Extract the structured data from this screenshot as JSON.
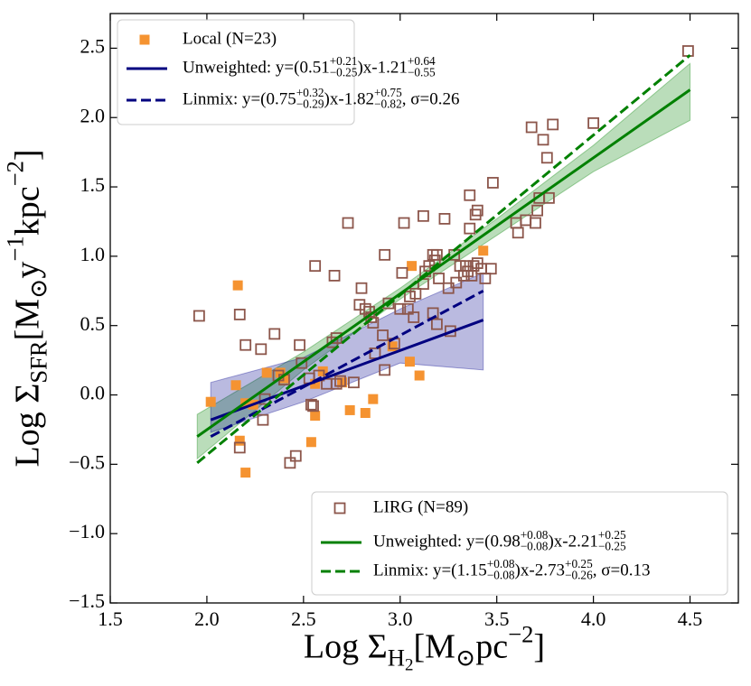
{
  "chart_data": {
    "type": "scatter",
    "xlabel": [
      {
        "text": "Log Σ"
      },
      {
        "text": "H",
        "pos": "sub"
      },
      {
        "text": "2",
        "pos": "subsub"
      },
      {
        "text": " [M"
      },
      {
        "text": "⊙",
        "pos": "sub"
      },
      {
        "text": " pc"
      },
      {
        "text": "−2",
        "pos": "sup"
      },
      {
        "text": "]"
      }
    ],
    "ylabel": [
      {
        "text": "Log Σ"
      },
      {
        "text": "SFR",
        "pos": "sub"
      },
      {
        "text": " [M"
      },
      {
        "text": "⊙",
        "pos": "sub"
      },
      {
        "text": " y"
      },
      {
        "text": "−1",
        "pos": "sup"
      },
      {
        "text": " kpc"
      },
      {
        "text": "−2",
        "pos": "sup"
      },
      {
        "text": "]"
      }
    ],
    "xlim": [
      1.5,
      4.75
    ],
    "ylim": [
      -1.5,
      2.75
    ],
    "xticks": [
      1.5,
      {
        "value": 2,
        "label": "2.0"
      },
      2.5,
      {
        "value": 3,
        "label": "3.0"
      },
      3.5,
      {
        "value": 4,
        "label": "4.0"
      },
      4.5
    ],
    "yticks": [
      {
        "value": -1.5,
        "label": "−1.5"
      },
      {
        "value": -1,
        "label": "−1.0"
      },
      {
        "value": -0.5,
        "label": "−0.5"
      },
      {
        "value": 0,
        "label": "0.0"
      },
      0.5,
      {
        "value": 1,
        "label": "1.0"
      },
      1.5,
      {
        "value": 2,
        "label": "2.0"
      },
      2.5
    ],
    "grid": false,
    "bands": [
      {
        "color": "#008000",
        "x": [
          1.95,
          2.5,
          3.0,
          3.5,
          4.0,
          4.5
        ],
        "upper": [
          -0.14,
          0.31,
          0.77,
          1.27,
          1.8,
          2.39
        ],
        "lower": [
          -0.46,
          0.18,
          0.69,
          1.15,
          1.61,
          1.98
        ]
      },
      {
        "color": "#00008b",
        "x": [
          2.02,
          2.5,
          3.0,
          3.43
        ],
        "upper": [
          0.09,
          0.27,
          0.62,
          0.88
        ],
        "lower": [
          -0.27,
          -0.05,
          0.23,
          0.18
        ]
      }
    ],
    "series": [
      {
        "name": "Local (N=23)",
        "marker": "filled",
        "color": "#f59331",
        "legend": "upper left",
        "x": [
          2.02,
          2.15,
          2.16,
          2.17,
          2.2,
          2.2,
          2.24,
          2.31,
          2.38,
          2.54,
          2.56,
          2.56,
          2.6,
          2.7,
          2.74,
          2.82,
          2.86,
          2.96,
          3.05,
          3.06,
          3.1,
          3.43,
          2.4
        ],
        "values": [
          -0.05,
          0.07,
          0.79,
          -0.33,
          -0.56,
          -0.06,
          -0.07,
          0.16,
          0.16,
          -0.34,
          -0.15,
          0.08,
          0.17,
          0.09,
          -0.11,
          -0.13,
          -0.03,
          0.35,
          0.24,
          0.93,
          0.14,
          1.04,
          0.12
        ]
      },
      {
        "name": "LIRG (N=89)",
        "marker": "open",
        "color": "#8c564b",
        "legend": "lower right",
        "x": [
          1.96,
          2.17,
          2.17,
          2.2,
          2.28,
          2.29,
          2.3,
          2.35,
          2.37,
          2.4,
          2.43,
          2.46,
          2.48,
          2.49,
          2.53,
          2.54,
          2.56,
          2.55,
          2.62,
          2.65,
          2.66,
          2.67,
          2.67,
          2.73,
          2.76,
          2.79,
          2.8,
          2.82,
          2.85,
          2.86,
          2.87,
          2.91,
          2.92,
          2.92,
          2.94,
          2.97,
          3.01,
          3.02,
          3.04,
          3.05,
          3.07,
          3.08,
          3.12,
          3.12,
          3.13,
          3.15,
          3.17,
          3.17,
          3.18,
          3.19,
          3.19,
          3.2,
          3.23,
          3.25,
          3.26,
          3.28,
          3.29,
          3.33,
          3.34,
          3.36,
          3.36,
          3.37,
          3.38,
          3.39,
          3.4,
          3.4,
          3.42,
          3.44,
          3.47,
          3.48,
          3.6,
          3.61,
          3.65,
          3.68,
          3.7,
          3.71,
          3.72,
          3.74,
          3.76,
          3.77,
          3.79,
          4.0,
          4.49,
          2.58,
          2.69,
          2.84,
          3.35,
          3.31,
          3.0
        ],
        "values": [
          0.57,
          0.58,
          -0.38,
          0.36,
          0.33,
          -0.18,
          -0.03,
          0.44,
          0.14,
          0.11,
          -0.49,
          -0.44,
          0.36,
          0.23,
          0.12,
          -0.07,
          0.93,
          -0.08,
          0.08,
          0.38,
          0.86,
          0.41,
          0.08,
          1.24,
          0.09,
          0.65,
          0.77,
          0.62,
          0.56,
          0.52,
          0.3,
          0.43,
          0.18,
          1.01,
          0.66,
          0.37,
          0.88,
          1.24,
          0.62,
          0.71,
          0.56,
          0.73,
          1.29,
          0.8,
          0.89,
          0.93,
          1.01,
          0.59,
          0.97,
          1.01,
          0.51,
          0.84,
          1.27,
          0.77,
          0.46,
          1.01,
          0.81,
          0.86,
          0.93,
          1.44,
          1.2,
          0.86,
          0.93,
          1.3,
          1.33,
          0.95,
          0.91,
          0.84,
          0.91,
          1.53,
          1.24,
          1.17,
          1.26,
          1.93,
          1.24,
          1.33,
          1.42,
          1.84,
          1.71,
          1.42,
          1.95,
          1.96,
          2.48,
          0.14,
          0.1,
          0.6,
          0.89,
          0.93,
          0.62
        ]
      }
    ],
    "fits": [
      {
        "color": "#000080",
        "dash": false,
        "legend": "upper left",
        "x": [
          2.02,
          3.43
        ],
        "values": [
          -0.18,
          0.54
        ],
        "label": [
          {
            "text": "Unweighted: y=(0.51"
          },
          {
            "text": "+0.21",
            "pos": "sup"
          },
          {
            "text": "−0.25",
            "pos": "sub"
          },
          {
            "text": ")x-1.21"
          },
          {
            "text": "+0.64",
            "pos": "sup"
          },
          {
            "text": "−0.55",
            "pos": "sub"
          }
        ]
      },
      {
        "color": "#000080",
        "dash": true,
        "legend": "upper left",
        "x": [
          2.02,
          3.43
        ],
        "values": [
          -0.3,
          0.75
        ],
        "label": [
          {
            "text": "Linmix: y=(0.75"
          },
          {
            "text": "+0.32",
            "pos": "sup"
          },
          {
            "text": "−0.29",
            "pos": "sub"
          },
          {
            "text": ")x-1.82"
          },
          {
            "text": "+0.75",
            "pos": "sup"
          },
          {
            "text": "−0.82",
            "pos": "sub"
          },
          {
            "text": ", σ=0.26"
          }
        ]
      },
      {
        "color": "#008000",
        "dash": false,
        "legend": "lower right",
        "x": [
          1.95,
          4.5
        ],
        "values": [
          -0.3,
          2.2
        ],
        "label": [
          {
            "text": "Unweighted: y=(0.98"
          },
          {
            "text": "+0.08",
            "pos": "sup"
          },
          {
            "text": "−0.08",
            "pos": "sub"
          },
          {
            "text": ")x-2.21"
          },
          {
            "text": "+0.25",
            "pos": "sup"
          },
          {
            "text": "−0.25",
            "pos": "sub"
          }
        ]
      },
      {
        "color": "#008000",
        "dash": true,
        "legend": "lower right",
        "x": [
          1.95,
          4.5
        ],
        "values": [
          -0.49,
          2.45
        ],
        "label": [
          {
            "text": "Linmix: y=(1.15"
          },
          {
            "text": "+0.08",
            "pos": "sup"
          },
          {
            "text": "−0.08",
            "pos": "sub"
          },
          {
            "text": ")x-2.73"
          },
          {
            "text": "+0.25",
            "pos": "sup"
          },
          {
            "text": "−0.26",
            "pos": "sub"
          },
          {
            "text": ", σ=0.13"
          }
        ]
      }
    ]
  }
}
